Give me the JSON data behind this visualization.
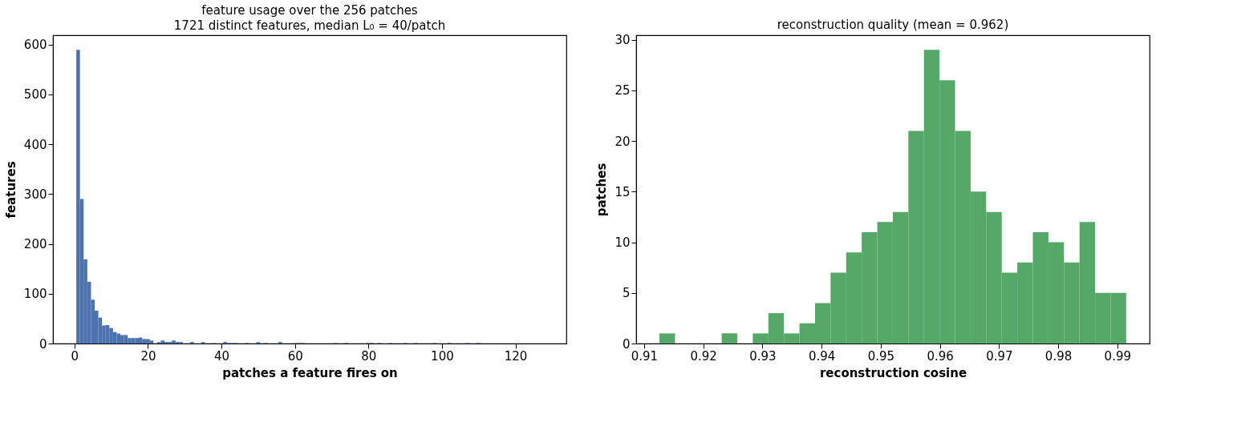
{
  "chart_data": [
    {
      "type": "histogram",
      "title": "feature usage over the 256 patches",
      "subtitle": "1721 distinct features, median L₀ = 40/patch",
      "xlabel": "patches a feature fires on",
      "ylabel": "features",
      "color": "#4c72b0",
      "bins": [
        0.5,
        1.5,
        2.5,
        3.5,
        4.5,
        5.5,
        6.5,
        7.5,
        8.5,
        9.5,
        10.5,
        11.5,
        12.5,
        13.5,
        14.5,
        15.5,
        16.5,
        17.5,
        18.5,
        19.5,
        20.5,
        21.5,
        22.5,
        23.5,
        24.5,
        25.5,
        26.5,
        27.5,
        28.5,
        29.5,
        30.5,
        31.5,
        32.5,
        33.5,
        34.5,
        35.5,
        36.5,
        37.5,
        38.5,
        39.5,
        40.5,
        41.5,
        42.5,
        43.5,
        44.5,
        45.5,
        46.5,
        47.5,
        48.5,
        49.5,
        50.5,
        51.5,
        52.5,
        53.5,
        54.5,
        55.5,
        56.5,
        57.5,
        58.5,
        59.5,
        60.5,
        61.5,
        62.5,
        63.5,
        64.5,
        65.5,
        66.5,
        67.5,
        68.5,
        69.5,
        70.5,
        71.5,
        72.5,
        73.5,
        74.5,
        75.5,
        76.5,
        77.5,
        78.5,
        79.5,
        80.5,
        81.5,
        82.5,
        83.5,
        84.5,
        85.5,
        86.5,
        87.5,
        88.5,
        89.5,
        90.5,
        91.5,
        92.5,
        93.5,
        94.5,
        95.5,
        96.5,
        97.5,
        98.5,
        99.5,
        100.5,
        101.5,
        102.5,
        103.5,
        104.5,
        105.5,
        106.5,
        107.5,
        108.5,
        109.5,
        110.5,
        111.5,
        112.5,
        113.5,
        114.5,
        115.5,
        116.5,
        117.5,
        118.5,
        119.5,
        120.5,
        121.5,
        122.5,
        123.5,
        124.5,
        125.5,
        126.5,
        127.5
      ],
      "values": [
        589,
        290,
        169,
        124,
        88,
        66,
        52,
        36,
        37,
        31,
        23,
        20,
        17,
        17,
        11,
        11,
        11,
        12,
        9,
        9,
        6,
        0,
        3,
        6,
        3,
        3,
        6,
        3,
        3,
        0,
        0,
        3,
        0,
        0,
        3,
        0,
        0,
        1,
        0,
        0,
        3,
        1,
        1,
        1,
        0,
        0,
        1,
        0,
        0,
        3,
        0,
        1,
        0,
        0,
        0,
        3,
        0,
        0,
        0,
        1,
        1,
        1,
        0,
        0,
        0,
        0,
        0,
        0,
        0,
        0,
        1,
        0,
        0,
        1,
        0,
        0,
        0,
        0,
        0,
        1,
        1,
        0,
        1,
        0,
        0,
        1,
        0,
        0,
        0,
        1,
        0,
        0,
        1,
        0,
        0,
        0,
        0,
        1,
        0,
        0,
        0,
        1,
        0,
        0,
        0,
        0,
        1,
        0,
        0,
        1,
        0,
        0,
        0,
        0,
        0,
        0,
        0,
        0,
        0,
        0,
        0,
        0,
        0,
        0,
        0,
        0,
        0
      ],
      "xlim": [
        -5.85,
        133.85
      ],
      "xticks": [
        0,
        20,
        40,
        60,
        80,
        100,
        120
      ],
      "ylim": [
        0,
        618.5
      ],
      "yticks": [
        0,
        100,
        200,
        300,
        400,
        500,
        600
      ],
      "grid": false
    },
    {
      "type": "histogram",
      "title": "reconstruction quality (mean = 0.962)",
      "xlabel": "reconstruction cosine",
      "ylabel": "patches",
      "color": "#55a868",
      "bins": [
        0.9126,
        0.91523,
        0.91786,
        0.92049,
        0.92312,
        0.92575,
        0.92838,
        0.93101,
        0.93364,
        0.93627,
        0.9389,
        0.94153,
        0.94416,
        0.94679,
        0.94942,
        0.95205,
        0.95468,
        0.95731,
        0.95994,
        0.96257,
        0.9652,
        0.96783,
        0.97046,
        0.97309,
        0.97572,
        0.97835,
        0.98098,
        0.98361,
        0.98624,
        0.98887,
        0.9915
      ],
      "values": [
        1,
        0,
        0,
        0,
        1,
        0,
        1,
        3,
        1,
        2,
        4,
        7,
        9,
        11,
        12,
        13,
        21,
        29,
        26,
        21,
        15,
        13,
        7,
        8,
        11,
        10,
        8,
        12,
        5,
        5
      ],
      "xlim": [
        0.90866,
        0.99545
      ],
      "xticks": [
        0.91,
        0.92,
        0.93,
        0.94,
        0.95,
        0.96,
        0.97,
        0.98,
        0.99
      ],
      "ylim": [
        0,
        30.45
      ],
      "yticks": [
        0,
        5,
        10,
        15,
        20,
        25,
        30
      ],
      "grid": false
    }
  ]
}
